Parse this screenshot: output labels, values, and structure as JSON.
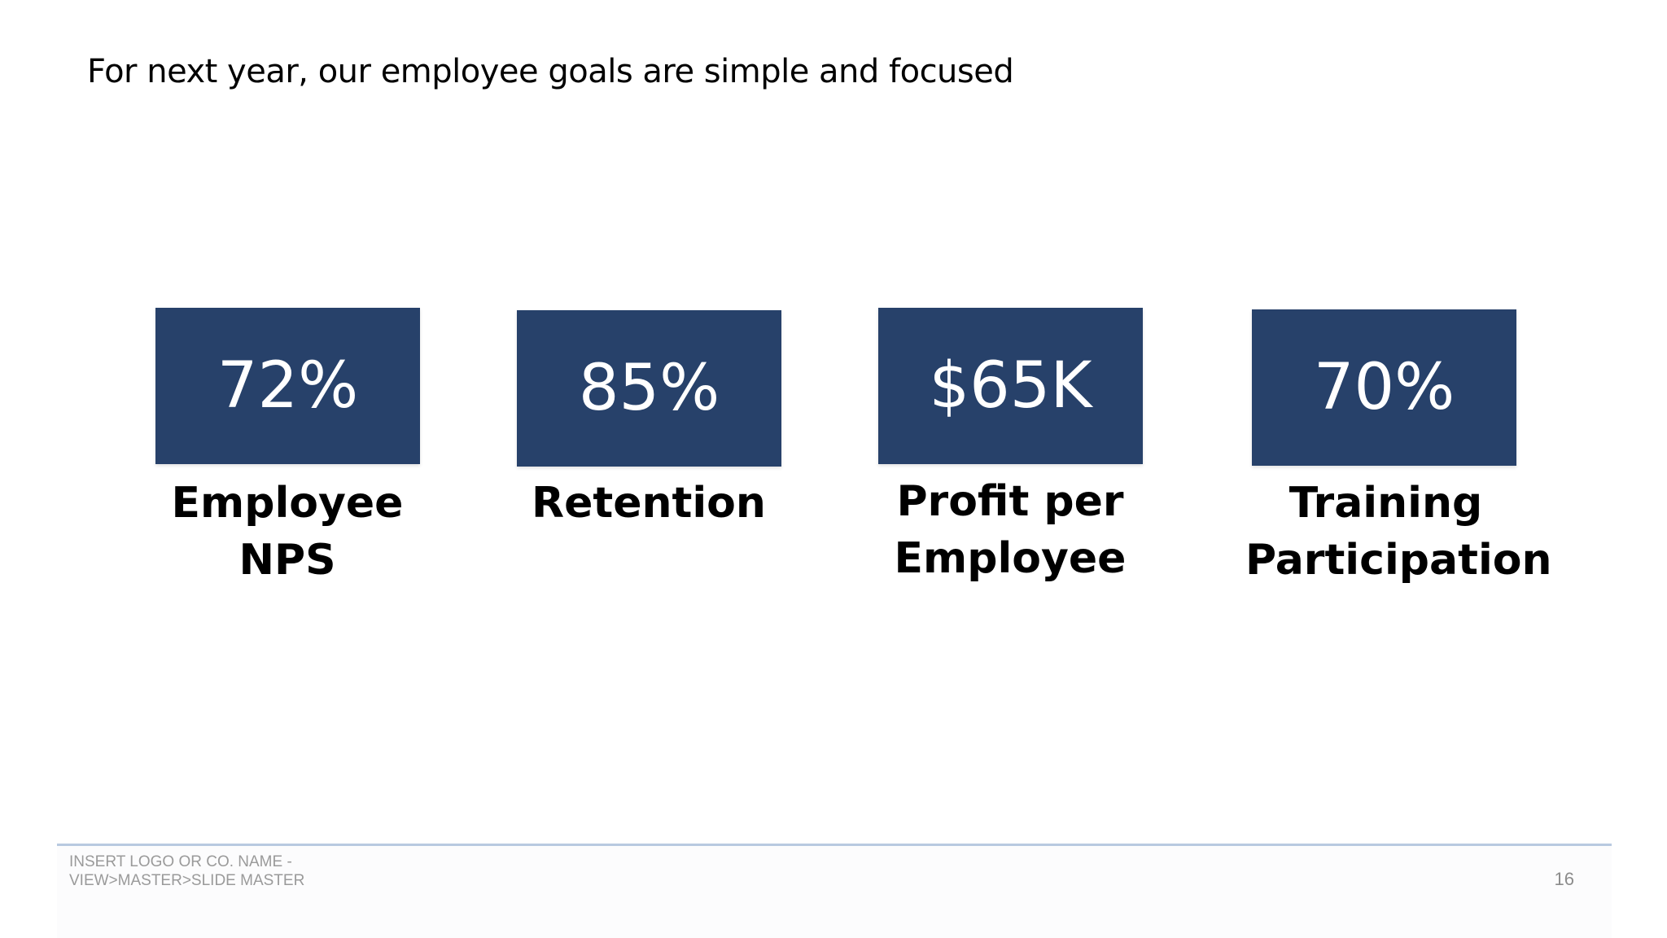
{
  "slide": {
    "title": "For next year, our employee goals are simple and focused",
    "page_number": "16",
    "footer": "INSERT LOGO OR CO. NAME -\nVIEW>MASTER>SLIDE MASTER"
  },
  "kpis": [
    {
      "value": "72%",
      "label": "Employee\nNPS"
    },
    {
      "value": "85%",
      "label": "Retention"
    },
    {
      "value": "$65K",
      "label": "Profit per\nEmployee"
    },
    {
      "value": "70%",
      "label": "Training\nParticipation"
    }
  ],
  "colors": {
    "box_fill": "#27416a",
    "footer_line": "#b8c9e0",
    "footer_text": "#9a9a9a"
  }
}
